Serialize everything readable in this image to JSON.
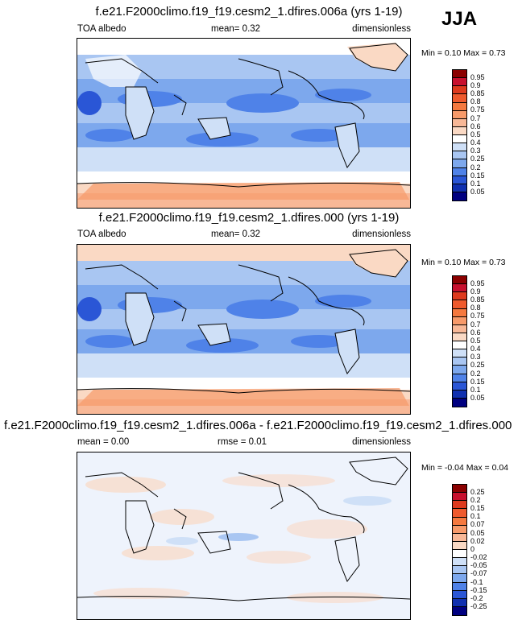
{
  "season": "JJA",
  "panels": [
    {
      "title": "f.e21.F2000climo.f19_f19.cesm2_1.dfires.006a (yrs 1-19)",
      "left_label": "TOA albedo",
      "mid_label": "mean=  0.32",
      "right_label": "dimensionless",
      "min_label": "Min =",
      "min_value": "0.10",
      "max_label": "Max =",
      "max_value": "0.73",
      "colorbar_labels": [
        "0.95",
        "0.9",
        "0.85",
        "0.8",
        "0.75",
        "0.7",
        "0.6",
        "0.5",
        "0.4",
        "0.3",
        "0.25",
        "0.2",
        "0.15",
        "0.1",
        "0.05"
      ],
      "colorbar_colors": [
        "#8b0000",
        "#c8102e",
        "#de3a1e",
        "#ef5a2d",
        "#f5793f",
        "#f79a6a",
        "#f8b897",
        "#fad9c4",
        "#ffffff",
        "#cfe0f7",
        "#a9c6f2",
        "#7da8ed",
        "#4f82e8",
        "#2a56d6",
        "#1030b0",
        "#000080"
      ]
    },
    {
      "title": "f.e21.F2000climo.f19_f19.cesm2_1.dfires.000 (yrs 1-19)",
      "left_label": "TOA albedo",
      "mid_label": "mean=  0.32",
      "right_label": "dimensionless",
      "min_label": "Min =",
      "min_value": "0.10",
      "max_label": "Max =",
      "max_value": "0.73",
      "colorbar_labels": [
        "0.95",
        "0.9",
        "0.85",
        "0.8",
        "0.75",
        "0.7",
        "0.6",
        "0.5",
        "0.4",
        "0.3",
        "0.25",
        "0.2",
        "0.15",
        "0.1",
        "0.05"
      ],
      "colorbar_colors": [
        "#8b0000",
        "#c8102e",
        "#de3a1e",
        "#ef5a2d",
        "#f5793f",
        "#f79a6a",
        "#f8b897",
        "#fad9c4",
        "#ffffff",
        "#cfe0f7",
        "#a9c6f2",
        "#7da8ed",
        "#4f82e8",
        "#2a56d6",
        "#1030b0",
        "#000080"
      ]
    },
    {
      "title": "f.e21.F2000climo.f19_f19.cesm2_1.dfires.006a - f.e21.F2000climo.f19_f19.cesm2_1.dfires.000",
      "left_label": "mean =  0.00",
      "mid_label": "rmse =  0.01",
      "right_label": "dimensionless",
      "min_label": "Min =",
      "min_value": "-0.04",
      "max_label": "Max =",
      "max_value": "0.04",
      "colorbar_labels": [
        "0.25",
        "0.2",
        "0.15",
        "0.1",
        "0.07",
        "0.05",
        "0.02",
        "0",
        "-0.02",
        "-0.05",
        "-0.07",
        "-0.1",
        "-0.15",
        "-0.2",
        "-0.25"
      ],
      "colorbar_colors": [
        "#8b0000",
        "#c8102e",
        "#de3a1e",
        "#ef5a2d",
        "#f5793f",
        "#f79a6a",
        "#f8b897",
        "#fad9c4",
        "#ffffff",
        "#cfe0f7",
        "#a9c6f2",
        "#7da8ed",
        "#4f82e8",
        "#2a56d6",
        "#1030b0",
        "#000080"
      ]
    }
  ]
}
